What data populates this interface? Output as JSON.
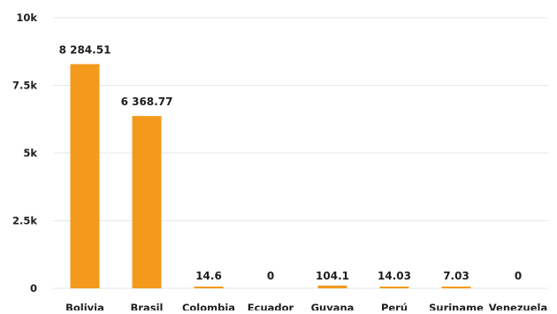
{
  "chart_data": {
    "type": "bar",
    "title": "",
    "xlabel": "",
    "ylabel": "",
    "categories": [
      "Bolivia",
      "Brasil",
      "Colombia",
      "Ecuador",
      "Guyana",
      "Perú",
      "Suriname",
      "Venezuela"
    ],
    "values": [
      8284.51,
      6368.77,
      14.6,
      0,
      104.1,
      14.03,
      7.03,
      0
    ],
    "data_labels": [
      "8 284.51",
      "6 368.77",
      "14.6",
      "0",
      "104.1",
      "14.03",
      "7.03",
      "0"
    ],
    "ylim": [
      0,
      10000
    ],
    "yticks": [
      0,
      2500,
      5000,
      7500,
      10000
    ],
    "ytick_labels": [
      "0",
      "2.5k",
      "5k",
      "7.5k",
      "10k"
    ],
    "grid": true,
    "legend": "none",
    "colors": {
      "bar": "#f39a1c",
      "grid": "#e6e6e6",
      "text": "#1e1e1e"
    }
  }
}
